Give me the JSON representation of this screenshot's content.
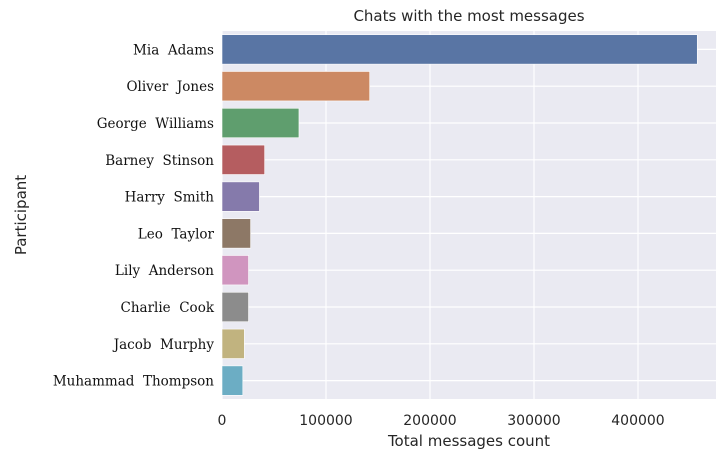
{
  "chart_data": {
    "type": "bar",
    "orientation": "horizontal",
    "title": "Chats with the most messages",
    "xlabel": "Total messages count",
    "ylabel": "Participant",
    "xlim": [
      0,
      475000
    ],
    "xticks": [
      0,
      100000,
      200000,
      300000,
      400000
    ],
    "grid": true,
    "categories": [
      "Mia  Adams",
      "Oliver  Jones",
      "George  Williams",
      "Barney  Stinson",
      "Harry  Smith",
      "Leo  Taylor",
      "Lily  Anderson",
      "Charlie  Cook",
      "Jacob  Murphy",
      "Muhammad  Thompson"
    ],
    "values": [
      457000,
      142000,
      74000,
      41000,
      36000,
      27500,
      25500,
      25500,
      21500,
      20000
    ],
    "colors": [
      "#5975a4",
      "#cc8963",
      "#5f9e6e",
      "#b55d60",
      "#857aab",
      "#8d7866",
      "#d095bf",
      "#8c8c8c",
      "#c1b37f",
      "#6cadc4"
    ],
    "background": "#eaeaf2"
  }
}
